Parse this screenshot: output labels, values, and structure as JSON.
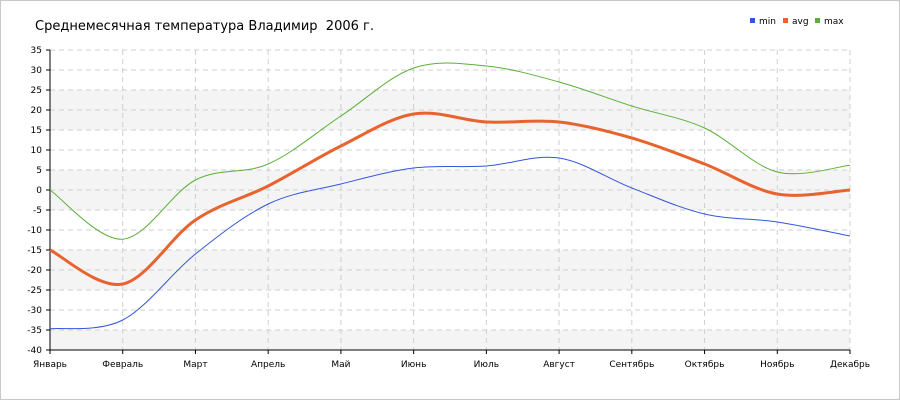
{
  "chart_data": {
    "type": "line",
    "title": "Среднемесячная температура Владимир  2006 г.",
    "xlabel": "",
    "ylabel": "",
    "categories": [
      "Январь",
      "Февраль",
      "Март",
      "Апрель",
      "Май",
      "Июнь",
      "Июль",
      "Август",
      "Сентябрь",
      "Октябрь",
      "Ноябрь",
      "Декабрь"
    ],
    "yticks": [
      35,
      30,
      25,
      20,
      15,
      10,
      5,
      0,
      -5,
      -10,
      -15,
      -20,
      -25,
      -30,
      -35,
      -40
    ],
    "ylim": [
      -40,
      35
    ],
    "grid": true,
    "legend_position": "top-right",
    "series": [
      {
        "name": "min",
        "color": "#3355dd",
        "values": [
          -34.7,
          -32.5,
          -16,
          -3.5,
          1.5,
          5.5,
          6,
          8,
          0.5,
          -6,
          -8,
          -11.5
        ]
      },
      {
        "name": "avg",
        "color": "#e8632e",
        "values": [
          -15,
          -23.5,
          -7.5,
          1,
          11,
          19,
          17,
          17,
          13,
          6.5,
          -1,
          0
        ]
      },
      {
        "name": "max",
        "color": "#5aaf3a",
        "values": [
          0,
          -12.3,
          2.5,
          6.5,
          18.5,
          30.5,
          31,
          27,
          21,
          15.5,
          4.5,
          6.2
        ]
      }
    ]
  }
}
